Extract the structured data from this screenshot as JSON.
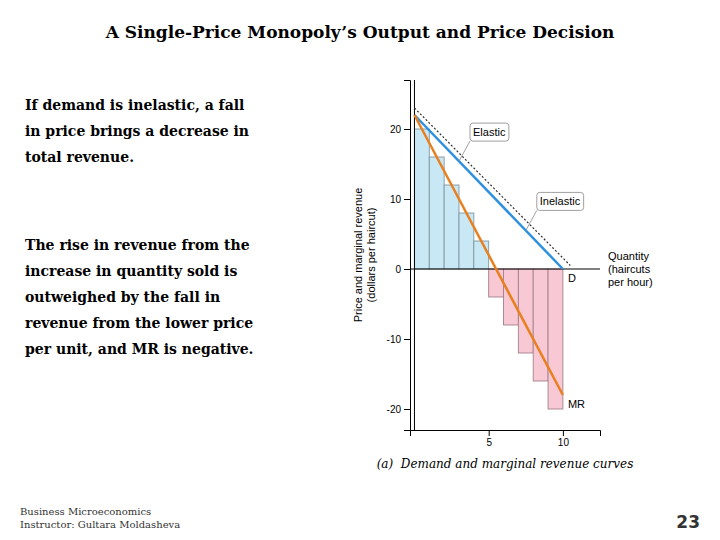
{
  "chart_data": {
    "type": "bar",
    "title": "A Single-Price Monopoly’s Output and Price Decision",
    "x_label": "Quantity\n(haircuts\nper hour)",
    "y_label": "Price and marginal revenue\n(dollars per haircut)",
    "caption": "(a)  Demand and marginal revenue curves",
    "xlim": [
      -0.3,
      12.5
    ],
    "xticks": [
      5,
      10
    ],
    "ylim": [
      -23,
      27
    ],
    "yticks": [
      -20,
      -10,
      0,
      10,
      20
    ],
    "grid": false,
    "series": [
      {
        "type": "bar",
        "color": "#c8e8f5",
        "bins": [
          0,
          1,
          2,
          3,
          4,
          5
        ],
        "values": [
          20,
          16,
          12,
          8,
          4
        ]
      },
      {
        "type": "bar",
        "color": "#f8c8d4",
        "bins": [
          5,
          6,
          7,
          8,
          9,
          10
        ],
        "values": [
          -4,
          -8,
          -12,
          -16,
          -20
        ]
      },
      {
        "type": "line",
        "name": "D",
        "color": "#3090e0",
        "x": [
          0,
          10
        ],
        "values": [
          22,
          0
        ]
      },
      {
        "type": "line",
        "name": "MR",
        "color": "#e88020",
        "x": [
          0,
          10
        ],
        "values": [
          22,
          -18
        ]
      },
      {
        "type": "line",
        "color": "#303030",
        "line_style": "dotted",
        "x": [
          0,
          10.5
        ],
        "values": [
          23,
          0.5
        ]
      }
    ],
    "annotations": [
      {
        "text": "Elastic",
        "x": 3,
        "y": 15.4
      },
      {
        "text": "Inelastic",
        "x": 7.5,
        "y": 5.5
      }
    ]
  },
  "text_panel": [
    [
      "If demand is inelastic, a fall",
      "in price brings a decrease in",
      "total revenue."
    ],
    [
      "The rise in revenue from the",
      "increase in quantity sold is",
      "outweighed by the fall in",
      "revenue from the lower price",
      "per unit, and MR is negative."
    ]
  ],
  "footer": [
    "Business Microeconomics",
    "Instructor: Gultara Moldasheva"
  ],
  "page_number": "23"
}
